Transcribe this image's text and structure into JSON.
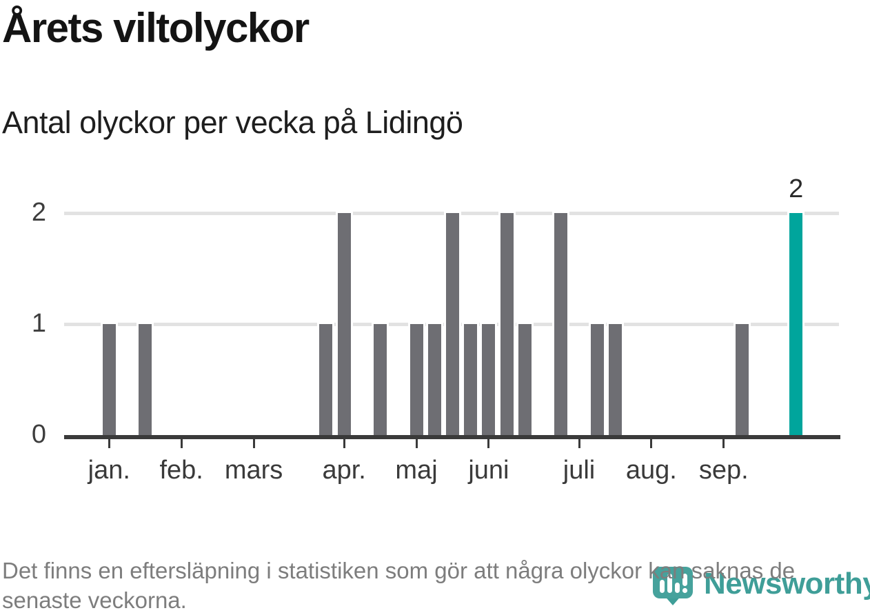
{
  "title": "Årets viltolyckor",
  "subtitle": "Antal olyckor per vecka på Lidingö",
  "footer": {
    "lines": [
      "Det finns en eftersläpning i statistiken som gör att några olyckor kan saknas de",
      "senaste veckorna."
    ]
  },
  "branding": {
    "name": "Newsworthy",
    "color": "#3f9e98"
  },
  "chart_data": {
    "type": "bar",
    "title": "Årets viltolyckor",
    "subtitle": "Antal olyckor per vecka på Lidingö",
    "xlabel": "",
    "ylabel": "",
    "x_unit": "vecka",
    "ylim": [
      0,
      2
    ],
    "yticks": [
      "0",
      "1",
      "2"
    ],
    "grid": "horizontal",
    "legend": "none",
    "values_by_week": [
      1,
      0,
      1,
      0,
      0,
      0,
      0,
      0,
      0,
      0,
      0,
      0,
      1,
      2,
      0,
      1,
      0,
      1,
      1,
      2,
      1,
      1,
      2,
      1,
      0,
      2,
      0,
      1,
      1,
      0,
      0,
      0,
      0,
      0,
      0,
      1,
      0,
      0,
      2
    ],
    "first_week": 1,
    "last_week": 39,
    "highlight_week": 39,
    "highlight_value_label": "2",
    "months": [
      {
        "label": "jan.",
        "week": 1
      },
      {
        "label": "feb.",
        "week": 5
      },
      {
        "label": "mars",
        "week": 9
      },
      {
        "label": "apr.",
        "week": 14
      },
      {
        "label": "maj",
        "week": 18
      },
      {
        "label": "juni",
        "week": 22
      },
      {
        "label": "juli",
        "week": 27
      },
      {
        "label": "aug.",
        "week": 31
      },
      {
        "label": "sep.",
        "week": 35
      }
    ],
    "colors": {
      "bar": "#6e6e73",
      "highlight": "#00a59c",
      "grid": "#e2e2e2",
      "axis": "#3a3a3a"
    }
  }
}
